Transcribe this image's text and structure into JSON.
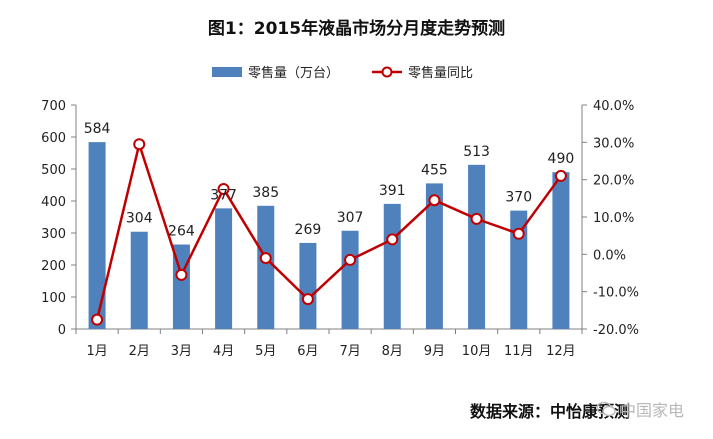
{
  "title": "图1：2015年液晶市场分月度走势预测",
  "legend": {
    "bar_label": "零售量（万台）",
    "line_label": "零售量同比"
  },
  "source": "数据来源：中怡康预测",
  "watermark": "中国家电",
  "colors": {
    "bar": "#4f81bd",
    "line": "#c00000",
    "axis": "#808080"
  },
  "chart_data": {
    "type": "bar+line",
    "title": "图1：2015年液晶市场分月度走势预测",
    "categories": [
      "1月",
      "2月",
      "3月",
      "4月",
      "5月",
      "6月",
      "7月",
      "8月",
      "9月",
      "10月",
      "11月",
      "12月"
    ],
    "series": [
      {
        "name": "零售量（万台）",
        "type": "bar",
        "axis": "left",
        "values": [
          584,
          304,
          264,
          377,
          385,
          269,
          307,
          391,
          455,
          513,
          370,
          490
        ]
      },
      {
        "name": "零售量同比",
        "type": "line",
        "axis": "right",
        "unit": "%",
        "values": [
          -17.5,
          29.5,
          -5.5,
          17.5,
          -1.0,
          -12.0,
          -1.5,
          4.0,
          14.5,
          9.5,
          5.5,
          21.0
        ]
      }
    ],
    "left_axis": {
      "min": 0,
      "max": 700,
      "step": 100,
      "ticks": [
        "0",
        "100",
        "200",
        "300",
        "400",
        "500",
        "600",
        "700"
      ]
    },
    "right_axis": {
      "min": -20,
      "max": 40,
      "step": 10,
      "ticks": [
        "-20.0%",
        "-10.0%",
        "0.0%",
        "10.0%",
        "20.0%",
        "30.0%",
        "40.0%"
      ]
    }
  }
}
